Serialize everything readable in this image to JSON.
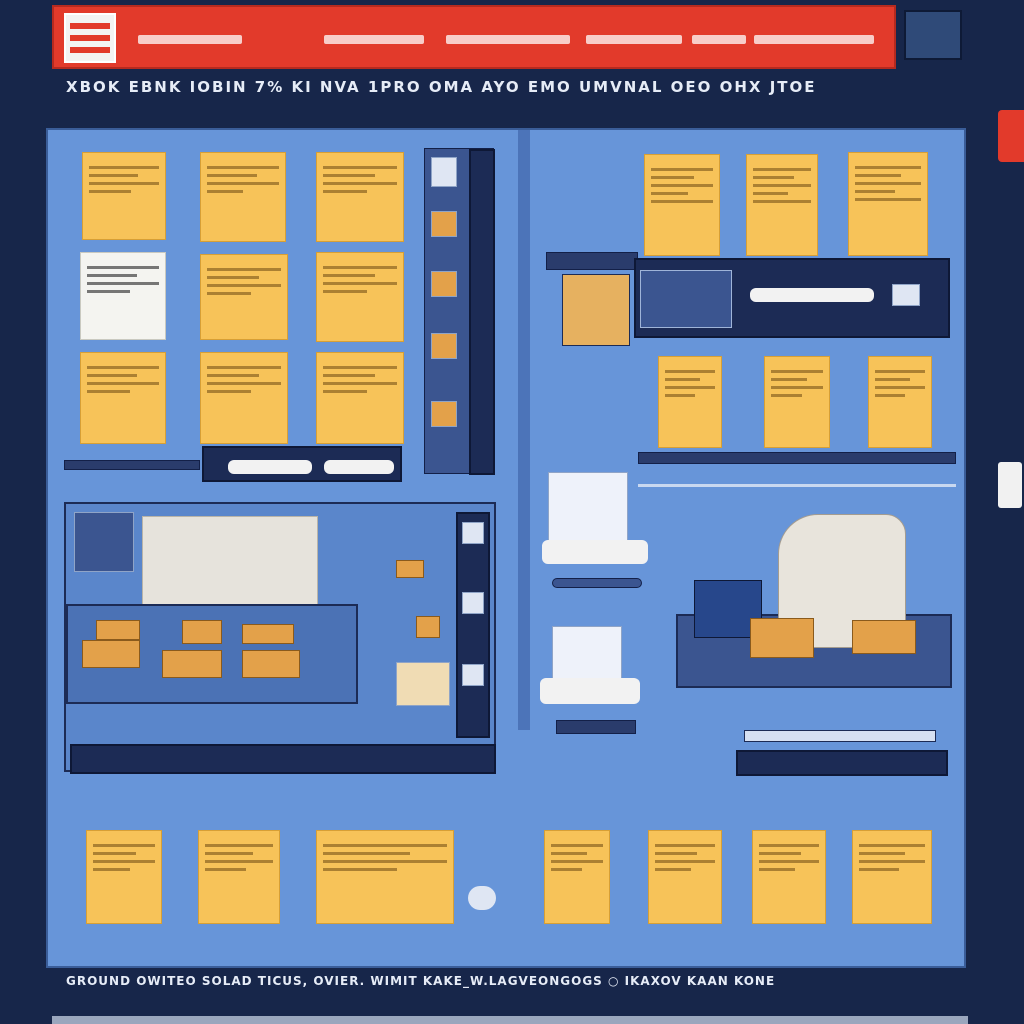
{
  "header": {
    "brand_accent": "#e23a2b",
    "logo_icon": "logo-icon",
    "segments": [
      "",
      "",
      "",
      "",
      "",
      ""
    ],
    "corner_tile_text": "",
    "subtitle": "XBOK  EBNK IOBIN 7% KI NVA 1PRO OMA AYO EMO  UMVNAL OEO OHX JTOE"
  },
  "left_top_cards": [
    {
      "title": "",
      "style": "yellow"
    },
    {
      "title": "",
      "style": "yellow"
    },
    {
      "title": "",
      "style": "yellow"
    },
    {
      "title": "",
      "style": "white"
    },
    {
      "title": "",
      "style": "yellow"
    },
    {
      "title": "",
      "style": "yellow"
    },
    {
      "title": "",
      "style": "yellow"
    },
    {
      "title": "",
      "style": "yellow"
    },
    {
      "title": "",
      "style": "yellow"
    }
  ],
  "left_bar_pills": [
    "",
    ""
  ],
  "right_top_cards": [
    {
      "title": ""
    },
    {
      "title": ""
    },
    {
      "title": ""
    }
  ],
  "right_mid_cards": [
    {
      "title": ""
    },
    {
      "title": ""
    },
    {
      "title": ""
    }
  ],
  "right_banner": {
    "input_value": "",
    "thumbnail_icon": "image-icon"
  },
  "bottom_labels": [
    "",
    "",
    "",
    "",
    "",
    "",
    ""
  ],
  "bottom_cards": [
    {
      "title": ""
    },
    {
      "title": ""
    },
    {
      "title": ""
    },
    {
      "title": ""
    },
    {
      "title": ""
    },
    {
      "title": ""
    },
    {
      "title": ""
    }
  ],
  "bottom_sublabels": [
    "",
    "",
    "",
    "",
    "",
    ""
  ],
  "footer": {
    "text": "GROUND  OWITEO  SOLAD  TICUS,  OVIER.  WIMIT KAKE_W.LAGVEONGOGS   ○  IKAXOV  KAAN  KONE"
  }
}
